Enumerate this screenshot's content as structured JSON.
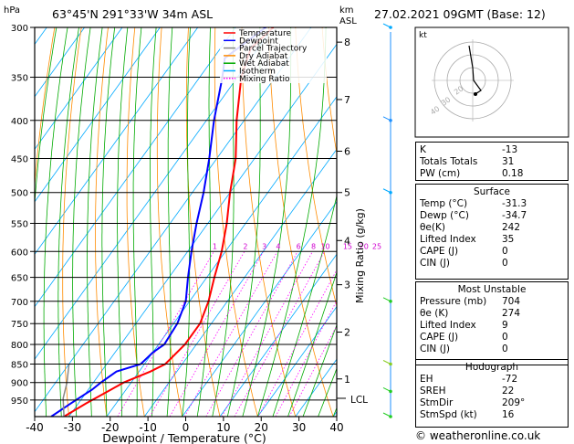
{
  "header": {
    "unit_left": "hPa",
    "location": "63°45'N  291°33'W  34m  ASL",
    "km_label": "km",
    "asl_label": "ASL",
    "datetime": "27.02.2021  09GMT  (Base: 12)"
  },
  "axes": {
    "xlabel": "Dewpoint / Temperature (°C)",
    "mixing_label": "Mixing Ratio (g/kg)",
    "lcl_label": "LCL"
  },
  "legend": [
    {
      "label": "Temperature",
      "color": "#ff0000"
    },
    {
      "label": "Dewpoint",
      "color": "#0000ff"
    },
    {
      "label": "Parcel Trajectory",
      "color": "#888888"
    },
    {
      "label": "Dry Adiabat",
      "color": "#ff8c00"
    },
    {
      "label": "Wet Adiabat",
      "color": "#00aa00"
    },
    {
      "label": "Isotherm",
      "color": "#00aaff"
    },
    {
      "label": "Mixing Ratio",
      "color": "#ff00ff"
    }
  ],
  "chart_data": {
    "type": "line",
    "chart_kind": "skew-T log-p",
    "pressure_ticks": [
      300,
      350,
      400,
      450,
      500,
      550,
      600,
      650,
      700,
      750,
      800,
      850,
      900,
      950
    ],
    "temp_ticks": [
      -40,
      -30,
      -20,
      -10,
      0,
      10,
      20,
      30,
      40
    ],
    "km_ticks": [
      {
        "km": "8",
        "p": 314
      },
      {
        "km": "7",
        "p": 375
      },
      {
        "km": "6",
        "p": 440
      },
      {
        "km": "5",
        "p": 500
      },
      {
        "km": "4",
        "p": 580
      },
      {
        "km": "3",
        "p": 665
      },
      {
        "km": "2",
        "p": 770
      },
      {
        "km": "1",
        "p": 890
      }
    ],
    "lcl_pressure": 945,
    "mixing_ratio_labels": [
      "1",
      "2",
      "3",
      "4",
      "6",
      "8",
      "10",
      "15",
      "20",
      "25"
    ],
    "series": [
      {
        "name": "Temperature",
        "color": "#ff0000",
        "points": [
          [
            1000,
            -31.3
          ],
          [
            960,
            -28
          ],
          [
            920,
            -24
          ],
          [
            900,
            -22
          ],
          [
            870,
            -17
          ],
          [
            850,
            -14.5
          ],
          [
            800,
            -13
          ],
          [
            750,
            -13
          ],
          [
            700,
            -15
          ],
          [
            650,
            -18
          ],
          [
            600,
            -21
          ],
          [
            550,
            -25
          ],
          [
            500,
            -30
          ],
          [
            450,
            -35
          ],
          [
            400,
            -42
          ],
          [
            350,
            -49
          ],
          [
            320,
            -52
          ],
          [
            300,
            -50
          ]
        ]
      },
      {
        "name": "Dewpoint",
        "color": "#0000ff",
        "points": [
          [
            1000,
            -34.7
          ],
          [
            960,
            -32
          ],
          [
            920,
            -29
          ],
          [
            900,
            -28
          ],
          [
            870,
            -26
          ],
          [
            850,
            -21
          ],
          [
            820,
            -20
          ],
          [
            800,
            -18.5
          ],
          [
            750,
            -19
          ],
          [
            700,
            -21
          ],
          [
            650,
            -25
          ],
          [
            600,
            -29
          ],
          [
            550,
            -33
          ],
          [
            500,
            -37
          ],
          [
            450,
            -42
          ],
          [
            400,
            -48
          ],
          [
            350,
            -54
          ],
          [
            330,
            -57
          ],
          [
            300,
            -52
          ]
        ]
      },
      {
        "name": "Parcel Trajectory",
        "color": "#888888",
        "points": [
          [
            1000,
            -31.3
          ],
          [
            945,
            -35
          ],
          [
            900,
            -37
          ],
          [
            850,
            -40
          ]
        ]
      }
    ],
    "hodograph": {
      "label": "kt",
      "ring_labels": [
        "40",
        "30",
        "20"
      ]
    }
  },
  "stats": {
    "k_label": "K",
    "k": "-13",
    "tt_label": "Totals Totals",
    "tt": "31",
    "pw_label": "PW (cm)",
    "pw": "0.18",
    "surface": {
      "title": "Surface",
      "rows": [
        {
          "label": "Temp (°C)",
          "value": "-31.3"
        },
        {
          "label": "Dewp (°C)",
          "value": "-34.7"
        },
        {
          "label": "θe(K)",
          "value": "242"
        },
        {
          "label": "Lifted Index",
          "value": "35"
        },
        {
          "label": "CAPE (J)",
          "value": "0"
        },
        {
          "label": "CIN (J)",
          "value": "0"
        }
      ]
    },
    "unstable": {
      "title": "Most Unstable",
      "rows": [
        {
          "label": "Pressure (mb)",
          "value": "704"
        },
        {
          "label": "θe (K)",
          "value": "274"
        },
        {
          "label": "Lifted Index",
          "value": "9"
        },
        {
          "label": "CAPE (J)",
          "value": "0"
        },
        {
          "label": "CIN (J)",
          "value": "0"
        }
      ]
    },
    "hodo": {
      "title": "Hodograph",
      "rows": [
        {
          "label": "EH",
          "value": "-72"
        },
        {
          "label": "SREH",
          "value": "22"
        },
        {
          "label": "StmDir",
          "value": "209°"
        },
        {
          "label": "StmSpd (kt)",
          "value": "16"
        }
      ]
    }
  },
  "footer": "© weatheronline.co.uk"
}
